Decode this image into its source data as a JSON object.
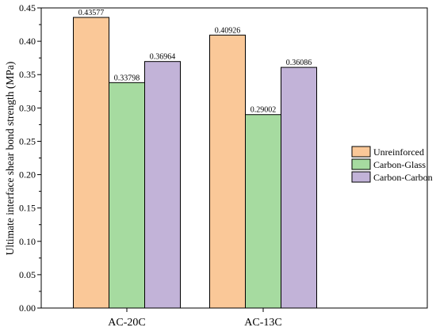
{
  "chart_data": {
    "type": "bar",
    "categories": [
      "AC-20C",
      "AC-13C"
    ],
    "series": [
      {
        "name": "Unreinforced",
        "values": [
          0.43577,
          0.40926
        ],
        "labels": [
          "0.43577",
          "0.40926"
        ],
        "color": "#FAC898"
      },
      {
        "name": "Carbon-Glass",
        "values": [
          0.33798,
          0.29002
        ],
        "labels": [
          "0.33798",
          "0.29002"
        ],
        "color": "#A6DBA0"
      },
      {
        "name": "Carbon-Carbon",
        "values": [
          0.36964,
          0.36086
        ],
        "labels": [
          "0.36964",
          "0.36086"
        ],
        "color": "#C2B3D8"
      }
    ],
    "ylabel": "Ultimate interface shear bond strength (MPa)",
    "xlabel": "",
    "ylim": [
      0,
      0.45
    ],
    "yticks": [
      "0.00",
      "0.05",
      "0.10",
      "0.15",
      "0.20",
      "0.25",
      "0.30",
      "0.35",
      "0.40",
      "0.45"
    ],
    "grid": false,
    "legend_position": "right"
  }
}
